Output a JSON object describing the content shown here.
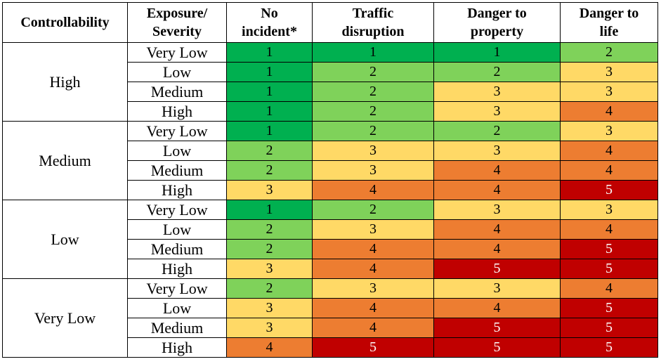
{
  "header": {
    "controllability": "Controllability",
    "exposure": [
      "Exposure/",
      "Severity"
    ],
    "no_incident": [
      "No",
      "incident*"
    ],
    "traffic": [
      "Traffic",
      "disruption"
    ],
    "property": [
      "Danger to",
      "property"
    ],
    "life": [
      "Danger to",
      "life"
    ]
  },
  "colors": {
    "1": "#00b050",
    "2": "#7fd25a",
    "3": "#ffd966",
    "4": "#ed7d31",
    "5": "#c00000"
  },
  "groups": [
    {
      "controllability": "High",
      "rows": [
        {
          "exposure": "Very Low",
          "values": [
            "1",
            "1",
            "1",
            "2"
          ]
        },
        {
          "exposure": "Low",
          "values": [
            "1",
            "2",
            "2",
            "3"
          ]
        },
        {
          "exposure": "Medium",
          "values": [
            "1",
            "2",
            "3",
            "3"
          ]
        },
        {
          "exposure": "High",
          "values": [
            "1",
            "2",
            "3",
            "4"
          ]
        }
      ]
    },
    {
      "controllability": "Medium",
      "rows": [
        {
          "exposure": "Very Low",
          "values": [
            "1",
            "2",
            "2",
            "3"
          ]
        },
        {
          "exposure": "Low",
          "values": [
            "2",
            "3",
            "3",
            "4"
          ]
        },
        {
          "exposure": "Medium",
          "values": [
            "2",
            "3",
            "4",
            "4"
          ]
        },
        {
          "exposure": "High",
          "values": [
            "3",
            "4",
            "4",
            "5"
          ]
        }
      ]
    },
    {
      "controllability": "Low",
      "rows": [
        {
          "exposure": "Very Low",
          "values": [
            "1",
            "2",
            "3",
            "3"
          ]
        },
        {
          "exposure": "Low",
          "values": [
            "2",
            "3",
            "4",
            "4"
          ]
        },
        {
          "exposure": "Medium",
          "values": [
            "2",
            "4",
            "4",
            "5"
          ]
        },
        {
          "exposure": "High",
          "values": [
            "3",
            "4",
            "5",
            "5"
          ]
        }
      ]
    },
    {
      "controllability": "Very Low",
      "rows": [
        {
          "exposure": "Very Low",
          "values": [
            "2",
            "3",
            "3",
            "4"
          ]
        },
        {
          "exposure": "Low",
          "values": [
            "3",
            "4",
            "4",
            "5"
          ]
        },
        {
          "exposure": "Medium",
          "values": [
            "3",
            "4",
            "5",
            "5"
          ]
        },
        {
          "exposure": "High",
          "values": [
            "4",
            "5",
            "5",
            "5"
          ]
        }
      ]
    }
  ]
}
